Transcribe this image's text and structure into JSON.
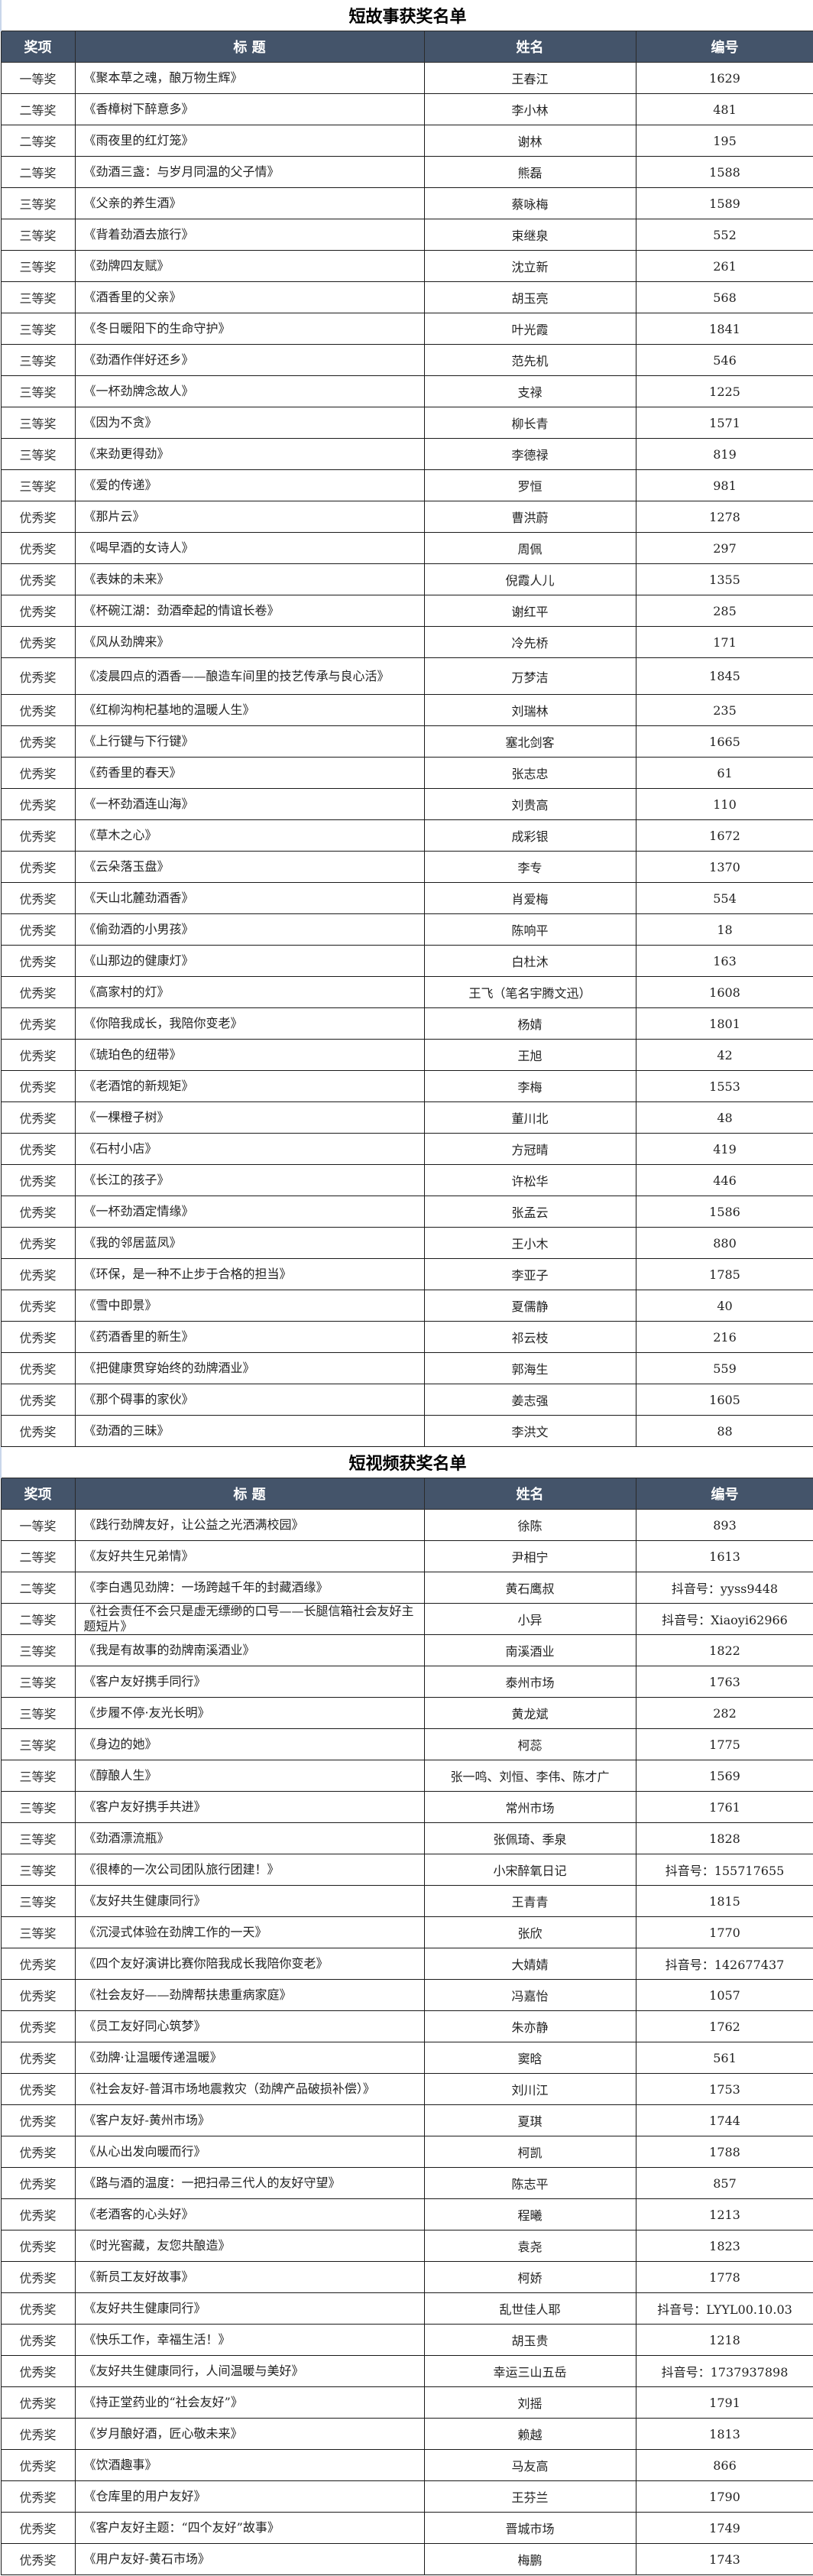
{
  "header_color": "#44546a",
  "tables": [
    {
      "title": "短故事获奖名单",
      "headers": [
        "奖项",
        "标  题",
        "姓名",
        "编号"
      ],
      "rows": [
        [
          "一等奖",
          "《聚本草之魂，酿万物生辉》",
          "王春江",
          "1629"
        ],
        [
          "二等奖",
          "《香樟树下醉意多》",
          "李小林",
          "481"
        ],
        [
          "二等奖",
          "《雨夜里的红灯笼》",
          "谢林",
          "195"
        ],
        [
          "二等奖",
          "《劲酒三盏：与岁月同温的父子情》",
          "熊磊",
          "1588"
        ],
        [
          "三等奖",
          "《父亲的养生酒》",
          "蔡咏梅",
          "1589"
        ],
        [
          "三等奖",
          "《背着劲酒去旅行》",
          "束继泉",
          "552"
        ],
        [
          "三等奖",
          "《劲牌四友赋》",
          "沈立新",
          "261"
        ],
        [
          "三等奖",
          "《酒香里的父亲》",
          "胡玉亮",
          "568"
        ],
        [
          "三等奖",
          "《冬日暖阳下的生命守护》",
          "叶光霞",
          "1841"
        ],
        [
          "三等奖",
          "《劲酒作伴好还乡》",
          "范先机",
          "546"
        ],
        [
          "三等奖",
          "《一杯劲牌念故人》",
          "支禄",
          "1225"
        ],
        [
          "三等奖",
          "《因为不贪》",
          "柳长青",
          "1571"
        ],
        [
          "三等奖",
          "《来劲更得劲》",
          "李德禄",
          "819"
        ],
        [
          "三等奖",
          "《爱的传递》",
          "罗恒",
          "981"
        ],
        [
          "优秀奖",
          "《那片云》",
          "曹洪蔚",
          "1278"
        ],
        [
          "优秀奖",
          "《喝早酒的女诗人》",
          "周佩",
          "297"
        ],
        [
          "优秀奖",
          "《表妹的未来》",
          "倪霞人儿",
          "1355"
        ],
        [
          "优秀奖",
          "《杯碗江湖：劲酒牵起的情谊长卷》",
          "谢红平",
          "285"
        ],
        [
          "优秀奖",
          "《风从劲牌来》",
          "冷先桥",
          "171"
        ],
        [
          "优秀奖",
          "《凌晨四点的酒香——酿造车间里的技艺传承与良心活》",
          "万梦洁",
          "1845"
        ],
        [
          "优秀奖",
          "《红柳沟枸杞基地的温暖人生》",
          "刘瑞林",
          "235"
        ],
        [
          "优秀奖",
          "《上行键与下行键》",
          "塞北剑客",
          "1665"
        ],
        [
          "优秀奖",
          "《药香里的春天》",
          "张志忠",
          "61"
        ],
        [
          "优秀奖",
          "《一杯劲酒连山海》",
          "刘贵高",
          "110"
        ],
        [
          "优秀奖",
          "《草木之心》",
          "成彩银",
          "1672"
        ],
        [
          "优秀奖",
          "《云朵落玉盘》",
          "李专",
          "1370"
        ],
        [
          "优秀奖",
          "《天山北麓劲酒香》",
          "肖爱梅",
          "554"
        ],
        [
          "优秀奖",
          "《偷劲酒的小男孩》",
          "陈响平",
          "18"
        ],
        [
          "优秀奖",
          "《山那边的健康灯》",
          "白杜沐",
          "163"
        ],
        [
          "优秀奖",
          "《高家村的灯》",
          "王飞（笔名宇腾文迅）",
          "1608"
        ],
        [
          "优秀奖",
          "《你陪我成长，我陪你变老》",
          "杨婧",
          "1801"
        ],
        [
          "优秀奖",
          "《琥珀色的纽带》",
          "王旭",
          "42"
        ],
        [
          "优秀奖",
          "《老酒馆的新规矩》",
          "李梅",
          "1553"
        ],
        [
          "优秀奖",
          "《一棵橙子树》",
          "董川北",
          "48"
        ],
        [
          "优秀奖",
          "《石村小店》",
          "方冠晴",
          "419"
        ],
        [
          "优秀奖",
          "《长江的孩子》",
          "许松华",
          "446"
        ],
        [
          "优秀奖",
          "《一杯劲酒定情缘》",
          "张孟云",
          "1586"
        ],
        [
          "优秀奖",
          "《我的邻居蓝凤》",
          "王小木",
          "880"
        ],
        [
          "优秀奖",
          "《环保，是一种不止步于合格的担当》",
          "李亚子",
          "1785"
        ],
        [
          "优秀奖",
          "《雪中即景》",
          "夏儒静",
          "40"
        ],
        [
          "优秀奖",
          "《药酒香里的新生》",
          "祁云枝",
          "216"
        ],
        [
          "优秀奖",
          "《把健康贯穿始终的劲牌酒业》",
          "郭海生",
          "559"
        ],
        [
          "优秀奖",
          "《那个碍事的家伙》",
          "姜志强",
          "1605"
        ],
        [
          "优秀奖",
          "《劲酒的三昧》",
          "李洪文",
          "88"
        ]
      ]
    },
    {
      "title": "短视频获奖名单",
      "headers": [
        "奖项",
        "标  题",
        "姓名",
        "编号"
      ],
      "rows": [
        [
          "一等奖",
          "《践行劲牌友好，让公益之光洒满校园》",
          "徐陈",
          "893"
        ],
        [
          "二等奖",
          "《友好共生兄弟情》",
          "尹相宁",
          "1613"
        ],
        [
          "二等奖",
          "《李白遇见劲牌：一场跨越千年的封藏酒缘》",
          "黄石鹰叔",
          "抖音号：yyss9448"
        ],
        [
          "二等奖",
          "《社会责任不会只是虚无缥缈的口号——长腿信箱社会友好主题短片》",
          "小异",
          "抖音号：Xiaoyi62966"
        ],
        [
          "三等奖",
          "《我是有故事的劲牌南溪酒业》",
          "南溪酒业",
          "1822"
        ],
        [
          "三等奖",
          "《客户友好携手同行》",
          "泰州市场",
          "1763"
        ],
        [
          "三等奖",
          "《步履不停·友光长明》",
          "黄龙斌",
          "282"
        ],
        [
          "三等奖",
          "《身边的她》",
          "柯蕊",
          "1775"
        ],
        [
          "三等奖",
          "《醇酿人生》",
          "张一鸣、刘恒、李伟、陈才广",
          "1569"
        ],
        [
          "三等奖",
          "《客户友好携手共进》",
          "常州市场",
          "1761"
        ],
        [
          "三等奖",
          "《劲酒漂流瓶》",
          "张佩琦、季泉",
          "1828"
        ],
        [
          "三等奖",
          "《很棒的一次公司团队旅行团建！》",
          "小宋醉氧日记",
          "抖音号：155717655"
        ],
        [
          "三等奖",
          "《友好共生健康同行》",
          "王青青",
          "1815"
        ],
        [
          "三等奖",
          "《沉浸式体验在劲牌工作的一天》",
          "张欣",
          "1770"
        ],
        [
          "优秀奖",
          "《四个友好演讲比赛你陪我成长我陪你变老》",
          "大婧婧",
          "抖音号：142677437"
        ],
        [
          "优秀奖",
          "《社会友好——劲牌帮扶患重病家庭》",
          "冯嘉怡",
          "1057"
        ],
        [
          "优秀奖",
          "《员工友好同心筑梦》",
          "朱亦静",
          "1762"
        ],
        [
          "优秀奖",
          "《劲牌·让温暖传递温暖》",
          "窦晗",
          "561"
        ],
        [
          "优秀奖",
          "《社会友好-普洱市场地震救灾（劲牌产品破损补偿）》",
          "刘川江",
          "1753"
        ],
        [
          "优秀奖",
          "《客户友好-黄州市场》",
          "夏琪",
          "1744"
        ],
        [
          "优秀奖",
          "《从心出发向暖而行》",
          "柯凯",
          "1788"
        ],
        [
          "优秀奖",
          "《路与酒的温度：一把扫帚三代人的友好守望》",
          "陈志平",
          "857"
        ],
        [
          "优秀奖",
          "《老酒客的心头好》",
          "程曦",
          "1213"
        ],
        [
          "优秀奖",
          "《时光窖藏，友您共酿造》",
          "袁尧",
          "1823"
        ],
        [
          "优秀奖",
          "《新员工友好故事》",
          "柯娇",
          "1778"
        ],
        [
          "优秀奖",
          "《友好共生健康同行》",
          "乱世佳人耶",
          "抖音号：LYYL00.10.03"
        ],
        [
          "优秀奖",
          "《快乐工作，幸福生活！》",
          "胡玉贵",
          "1218"
        ],
        [
          "优秀奖",
          "《友好共生健康同行，人间温暖与美好》",
          "幸运三山五岳",
          "抖音号：1737937898"
        ],
        [
          "优秀奖",
          "《持正堂药业的“社会友好”》",
          "刘摇",
          "1791"
        ],
        [
          "优秀奖",
          "《岁月酿好酒，匠心敬未来》",
          "赖越",
          "1813"
        ],
        [
          "优秀奖",
          "《饮酒趣事》",
          "马友高",
          "866"
        ],
        [
          "优秀奖",
          "《仓库里的用户友好》",
          "王芬兰",
          "1790"
        ],
        [
          "优秀奖",
          "《客户友好主题：“四个友好”故事》",
          "晋城市场",
          "1749"
        ],
        [
          "优秀奖",
          "《用户友好-黄石市场》",
          "梅鹏",
          "1743"
        ]
      ]
    }
  ]
}
